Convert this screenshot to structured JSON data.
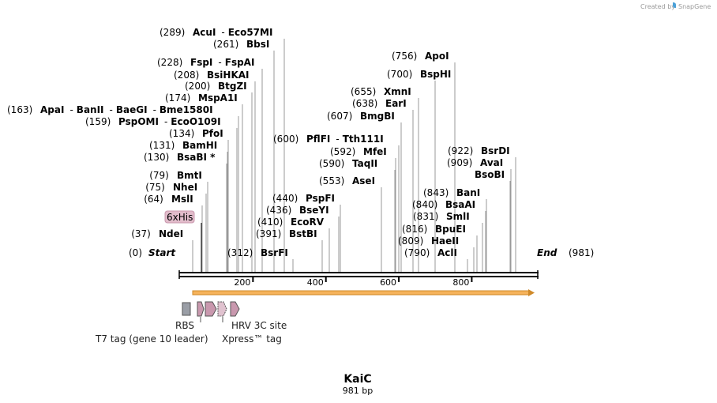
{
  "credit": {
    "prefix": "Created by",
    "brand": "SnapGene"
  },
  "sequence": {
    "name": "KaiC",
    "length_label": "981 bp",
    "length": 981
  },
  "ends": {
    "start": {
      "pos_label": "(0)",
      "label": "Start"
    },
    "end": {
      "label": "End",
      "pos_label": "(981)"
    }
  },
  "ruler": {
    "ticks": [
      {
        "value": 200,
        "label": "200"
      },
      {
        "value": 400,
        "label": "400"
      },
      {
        "value": 600,
        "label": "600"
      },
      {
        "value": 800,
        "label": "800"
      }
    ]
  },
  "enzymes": [
    {
      "pos": 37,
      "pos_label": "(37)",
      "name": "NdeI"
    },
    {
      "pos": 64,
      "pos_label": "(64)",
      "name": "MslI"
    },
    {
      "pos": 75,
      "pos_label": "(75)",
      "name": "NheI"
    },
    {
      "pos": 79,
      "pos_label": "(79)",
      "name": "BmtI"
    },
    {
      "pos": 130,
      "pos_label": "(130)",
      "name": "BsaBI *"
    },
    {
      "pos": 131,
      "pos_label": "(131)",
      "name": "BamHI"
    },
    {
      "pos": 134,
      "pos_label": "(134)",
      "name": "PfoI"
    },
    {
      "pos": 159,
      "pos_label": "(159)",
      "name": "PspOMI",
      "also": [
        "EcoO109I"
      ]
    },
    {
      "pos": 163,
      "pos_label": "(163)",
      "name": "ApaI",
      "also": [
        "BanII",
        "BaeGI",
        "Bme1580I"
      ]
    },
    {
      "pos": 174,
      "pos_label": "(174)",
      "name": "MspA1I"
    },
    {
      "pos": 200,
      "pos_label": "(200)",
      "name": "BtgZI"
    },
    {
      "pos": 208,
      "pos_label": "(208)",
      "name": "BsiHKAI"
    },
    {
      "pos": 228,
      "pos_label": "(228)",
      "name": "FspI",
      "also": [
        "FspAI"
      ]
    },
    {
      "pos": 261,
      "pos_label": "(261)",
      "name": "BbsI"
    },
    {
      "pos": 289,
      "pos_label": "(289)",
      "name": "AcuI",
      "also": [
        "Eco57MI"
      ]
    },
    {
      "pos": 312,
      "pos_label": "(312)",
      "name": "BsrFI"
    },
    {
      "pos": 391,
      "pos_label": "(391)",
      "name": "BstBI"
    },
    {
      "pos": 410,
      "pos_label": "(410)",
      "name": "EcoRV"
    },
    {
      "pos": 436,
      "pos_label": "(436)",
      "name": "BseYI"
    },
    {
      "pos": 440,
      "pos_label": "(440)",
      "name": "PspFI"
    },
    {
      "pos": 553,
      "pos_label": "(553)",
      "name": "AseI"
    },
    {
      "pos": 590,
      "pos_label": "(590)",
      "name": "TaqII"
    },
    {
      "pos": 592,
      "pos_label": "(592)",
      "name": "MfeI"
    },
    {
      "pos": 600,
      "pos_label": "(600)",
      "name": "PflFI",
      "also": [
        "Tth111I"
      ]
    },
    {
      "pos": 607,
      "pos_label": "(607)",
      "name": "BmgBI"
    },
    {
      "pos": 638,
      "pos_label": "(638)",
      "name": "EarI"
    },
    {
      "pos": 655,
      "pos_label": "(655)",
      "name": "XmnI"
    },
    {
      "pos": 700,
      "pos_label": "(700)",
      "name": "BspHI"
    },
    {
      "pos": 756,
      "pos_label": "(756)",
      "name": "ApoI"
    },
    {
      "pos": 790,
      "pos_label": "(790)",
      "name": "AclI"
    },
    {
      "pos": 809,
      "pos_label": "(809)",
      "name": "HaeII"
    },
    {
      "pos": 816,
      "pos_label": "(816)",
      "name": "BpuEI"
    },
    {
      "pos": 831,
      "pos_label": "(831)",
      "name": "SmlI"
    },
    {
      "pos": 840,
      "pos_label": "(840)",
      "name": "BsaAI"
    },
    {
      "pos": 843,
      "pos_label": "(843)",
      "name": "BanI"
    },
    {
      "pos": 909,
      "pos_label": "(909)",
      "name": "AvaI"
    },
    {
      "pos": 922,
      "pos_label": "(922)",
      "name": "BsrDI"
    },
    {
      "pos": "",
      "pos_label": "",
      "name": "BsoBI"
    }
  ],
  "features": {
    "his_tag": {
      "label": "6xHis"
    },
    "rbs": {
      "label": "RBS"
    },
    "t7": {
      "label": "T7 tag (gene 10 leader)"
    },
    "hrv": {
      "label": "HRV 3C site"
    },
    "xpress": {
      "label": "Xpress™ tag"
    }
  },
  "colors": {
    "feature_fill": "#c998ae",
    "orf_fill": "#f5b25b",
    "rbs_fill": "#9a9ea6"
  }
}
